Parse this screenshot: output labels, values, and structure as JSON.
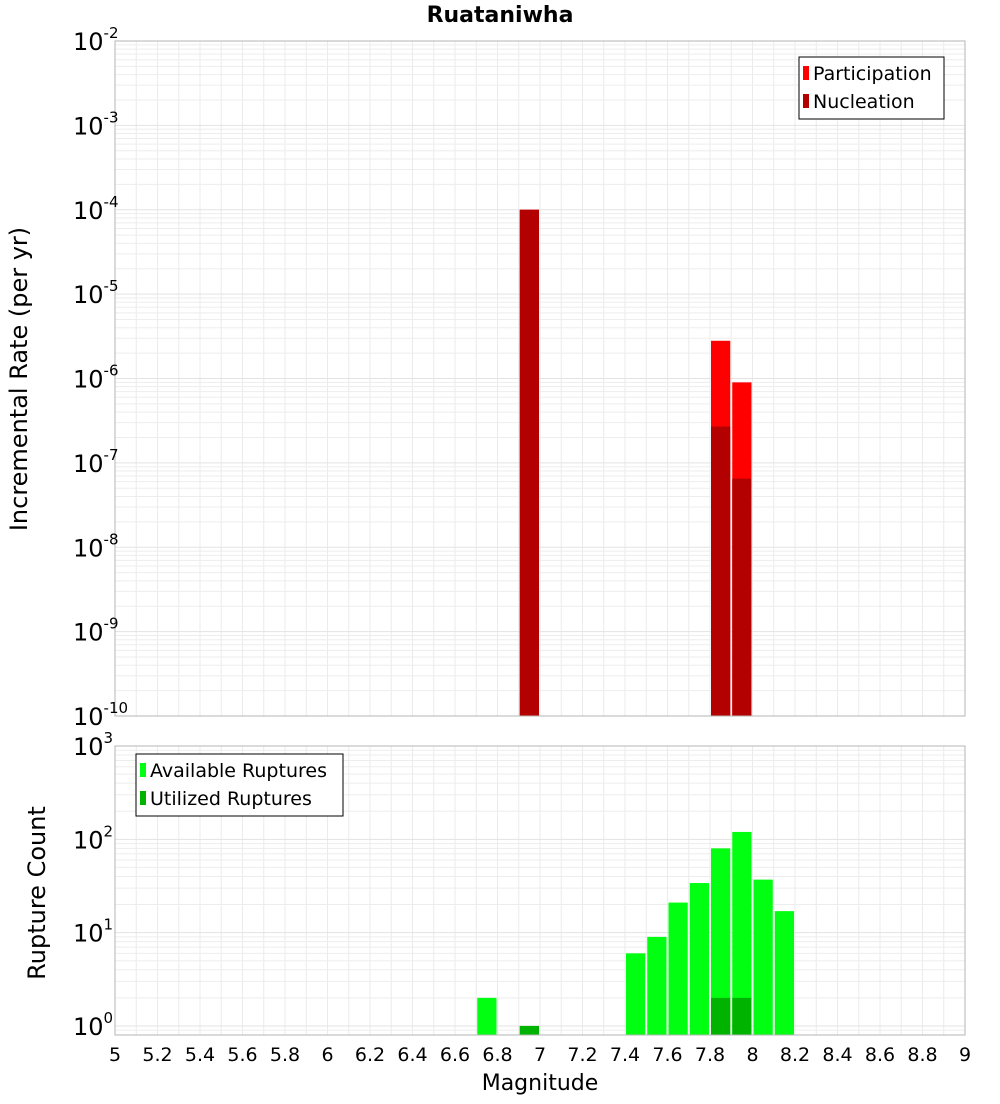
{
  "chart_data": [
    {
      "type": "bar",
      "title": "Ruataniwha",
      "ylabel": "Incremental Rate (per yr)",
      "xlabel": "",
      "x_range": [
        5,
        9
      ],
      "yscale": "log",
      "ylim": [
        1e-10,
        0.01
      ],
      "y_tick_labels": [
        {
          "base": "10",
          "exp": "-10",
          "value": 1e-10
        },
        {
          "base": "10",
          "exp": "-9",
          "value": 1e-09
        },
        {
          "base": "10",
          "exp": "-8",
          "value": 1e-08
        },
        {
          "base": "10",
          "exp": "-7",
          "value": 1e-07
        },
        {
          "base": "10",
          "exp": "-6",
          "value": 1e-06
        },
        {
          "base": "10",
          "exp": "-5",
          "value": 1e-05
        },
        {
          "base": "10",
          "exp": "-4",
          "value": 0.0001
        },
        {
          "base": "10",
          "exp": "-3",
          "value": 0.001
        },
        {
          "base": "10",
          "exp": "-2",
          "value": 0.01
        }
      ],
      "bin_width": 0.1,
      "grid": true,
      "legend": "top-right",
      "series": [
        {
          "name": "Participation",
          "color": "#ff0000",
          "x": [
            6.95,
            7.85,
            7.95
          ],
          "values": [
            0.0001,
            2.8e-06,
            9e-07
          ]
        },
        {
          "name": "Nucleation",
          "color": "#b30000",
          "x": [
            6.95,
            7.85,
            7.95
          ],
          "values": [
            0.0001,
            2.7e-07,
            6.5e-08
          ]
        }
      ]
    },
    {
      "type": "bar",
      "title": "",
      "ylabel": "Rupture Count",
      "xlabel": "Magnitude",
      "x_range": [
        5,
        9
      ],
      "x_ticks": [
        "5",
        "5.2",
        "5.4",
        "5.6",
        "5.8",
        "6",
        "6.2",
        "6.4",
        "6.6",
        "6.8",
        "7",
        "7.2",
        "7.4",
        "7.6",
        "7.8",
        "8",
        "8.2",
        "8.4",
        "8.6",
        "8.8",
        "9"
      ],
      "yscale": "log",
      "ylim": [
        0.8,
        1000
      ],
      "y_tick_labels": [
        {
          "base": "10",
          "exp": "0",
          "value": 1
        },
        {
          "base": "10",
          "exp": "1",
          "value": 10
        },
        {
          "base": "10",
          "exp": "2",
          "value": 100
        },
        {
          "base": "10",
          "exp": "3",
          "value": 1000
        }
      ],
      "bin_width": 0.1,
      "grid": true,
      "legend": "top-left",
      "series": [
        {
          "name": "Available Ruptures",
          "color": "#00ff11",
          "x": [
            6.75,
            6.95,
            7.45,
            7.55,
            7.65,
            7.75,
            7.85,
            7.95,
            8.05,
            8.15
          ],
          "values": [
            2,
            1,
            6,
            9,
            21,
            34,
            80,
            120,
            37,
            17
          ]
        },
        {
          "name": "Utilized Ruptures",
          "color": "#00b300",
          "x": [
            6.95,
            7.85,
            7.95
          ],
          "values": [
            1,
            2,
            2
          ]
        }
      ]
    }
  ]
}
